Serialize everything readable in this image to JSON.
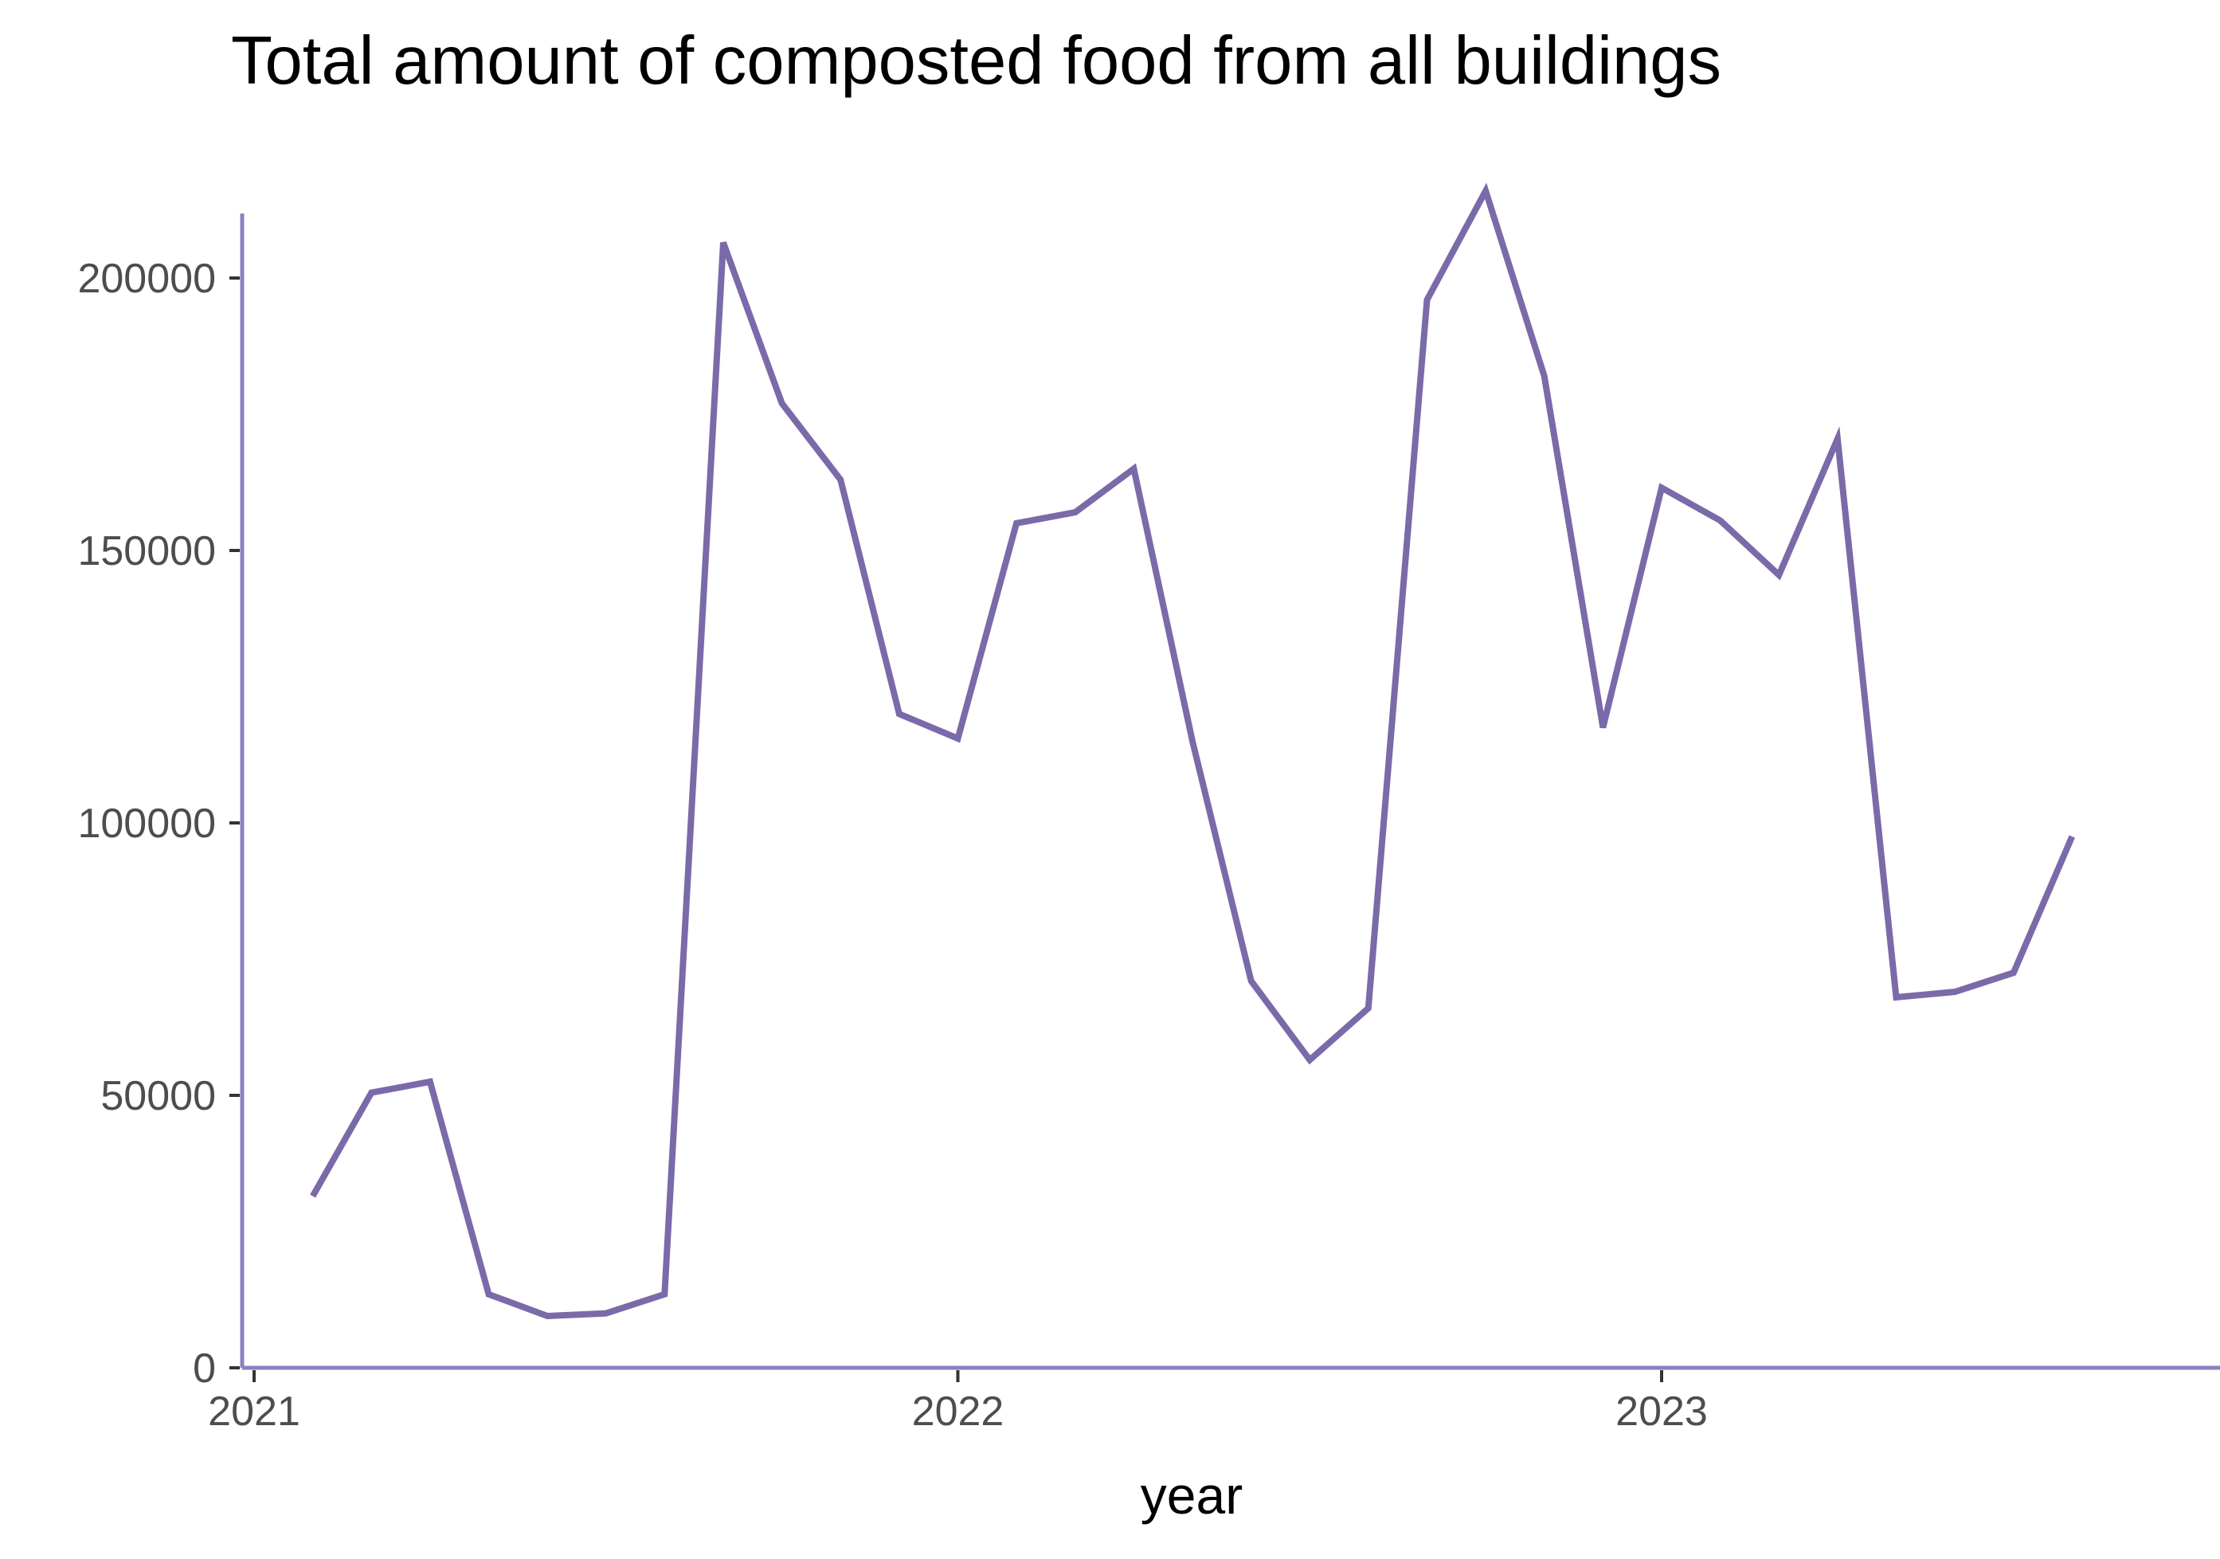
{
  "chart_data": {
    "type": "line",
    "title": "Total amount of composted food from all buildings",
    "xlabel": "year",
    "ylabel": "",
    "xlim": [
      2021.0,
      2023.8
    ],
    "ylim": [
      0,
      210000
    ],
    "grid": false,
    "x_ticks": [
      {
        "value": 2021.0,
        "label": "2021"
      },
      {
        "value": 2022.0,
        "label": "2022"
      },
      {
        "value": 2023.0,
        "label": "2023"
      }
    ],
    "y_ticks": [
      {
        "value": 0,
        "label": "0"
      },
      {
        "value": 50000,
        "label": "50000"
      },
      {
        "value": 100000,
        "label": "100000"
      },
      {
        "value": 150000,
        "label": "150000"
      },
      {
        "value": 200000,
        "label": "200000"
      }
    ],
    "colors": {
      "line": "#7b6aa9",
      "axis": "#8c80be",
      "tick": "#333333"
    },
    "series": [
      {
        "x": [
          2021.0833,
          2021.1667,
          2021.25,
          2021.3333,
          2021.4167,
          2021.5,
          2021.5833,
          2021.6667,
          2021.75,
          2021.8333,
          2021.9167,
          2022.0,
          2022.0833,
          2022.1667,
          2022.25,
          2022.3333,
          2022.4167,
          2022.5,
          2022.5833,
          2022.6667,
          2022.75,
          2022.8333,
          2022.9167,
          2023.0,
          2023.0833,
          2023.1667,
          2023.25,
          2023.3333,
          2023.4167,
          2023.5,
          2023.5833
        ],
        "values": [
          31500,
          50500,
          52500,
          13500,
          9500,
          10000,
          13500,
          206500,
          177000,
          163000,
          120000,
          115500,
          155000,
          157000,
          165000,
          115000,
          71000,
          56500,
          66000,
          196000,
          216000,
          182000,
          117500,
          161500,
          155500,
          145500,
          170500,
          68000,
          69000,
          72500,
          97500
        ]
      }
    ]
  }
}
